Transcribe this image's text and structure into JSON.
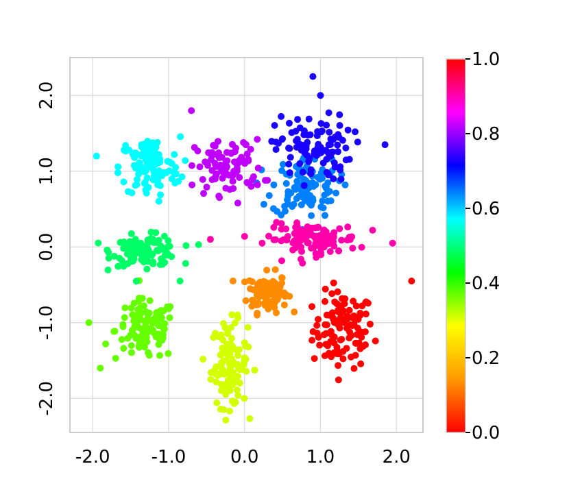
{
  "chart_data": {
    "type": "scatter",
    "title": "",
    "xlabel": "",
    "ylabel": "",
    "xlim": [
      -2.3,
      2.35
    ],
    "ylim": [
      -2.45,
      2.5
    ],
    "grid": true,
    "x_ticks": [
      -2.0,
      -1.0,
      0.0,
      1.0,
      2.0
    ],
    "x_tick_labels": [
      "-2.0",
      "-1.0",
      "0.0",
      "1.0",
      "2.0"
    ],
    "y_ticks": [
      -2.0,
      -1.0,
      0.0,
      1.0,
      2.0
    ],
    "y_tick_labels": [
      "-2.0",
      "-1.0",
      "0.0",
      "1.0",
      "2.0"
    ],
    "colorbar": {
      "range": [
        0.0,
        1.0
      ],
      "ticks": [
        0.0,
        0.2,
        0.4,
        0.6,
        0.8,
        1.0
      ],
      "tick_labels": [
        "0.0",
        "0.2",
        "0.4",
        "0.6",
        "0.8",
        "1.0"
      ],
      "colormap": "hsv",
      "stops": [
        "#ff0000",
        "#ff9900",
        "#ffff00",
        "#00ff00",
        "#00ffff",
        "#0000ff",
        "#ff00ff",
        "#ff0000"
      ]
    },
    "clusters": [
      {
        "center": [
          1.3,
          -1.1
        ],
        "spread": [
          0.2,
          0.25
        ],
        "n": 110,
        "value": 0.0,
        "color": "#ff0000"
      },
      {
        "center": [
          0.3,
          -0.6
        ],
        "spread": [
          0.13,
          0.13
        ],
        "n": 100,
        "value": 0.08,
        "color": "#ff8c00"
      },
      {
        "center": [
          -0.2,
          -1.55
        ],
        "spread": [
          0.12,
          0.28
        ],
        "n": 110,
        "value": 0.18,
        "color": "#d4ff00"
      },
      {
        "center": [
          -1.3,
          -1.1
        ],
        "spread": [
          0.2,
          0.2
        ],
        "n": 115,
        "value": 0.28,
        "color": "#66ff00"
      },
      {
        "center": [
          -1.3,
          -0.05
        ],
        "spread": [
          0.22,
          0.1
        ],
        "n": 110,
        "value": 0.38,
        "color": "#00ff66"
      },
      {
        "center": [
          -1.25,
          1.05
        ],
        "spread": [
          0.2,
          0.2
        ],
        "n": 110,
        "value": 0.5,
        "color": "#00ffff"
      },
      {
        "center": [
          0.8,
          0.8
        ],
        "spread": [
          0.22,
          0.2
        ],
        "n": 110,
        "value": 0.6,
        "color": "#0080ff"
      },
      {
        "center": [
          0.9,
          1.3
        ],
        "spread": [
          0.25,
          0.22
        ],
        "n": 100,
        "value": 0.68,
        "color": "#1a00ff"
      },
      {
        "center": [
          -0.2,
          1.05
        ],
        "spread": [
          0.22,
          0.18
        ],
        "n": 90,
        "value": 0.78,
        "color": "#c000ff"
      },
      {
        "center": [
          0.9,
          0.1
        ],
        "spread": [
          0.3,
          0.1
        ],
        "n": 110,
        "value": 0.88,
        "color": "#ff00aa"
      }
    ],
    "outliers": [
      {
        "x": 0.9,
        "y": 2.25,
        "color": "#1a00ff"
      },
      {
        "x": 1.0,
        "y": 2.0,
        "color": "#1a00ff"
      },
      {
        "x": 2.2,
        "y": -0.45,
        "color": "#ff0000"
      },
      {
        "x": -2.05,
        "y": -1.0,
        "color": "#66ff00"
      },
      {
        "x": -1.9,
        "y": -1.6,
        "color": "#66ff00"
      },
      {
        "x": -1.95,
        "y": 1.2,
        "color": "#00ffff"
      },
      {
        "x": -0.7,
        "y": 1.8,
        "color": "#c000ff"
      },
      {
        "x": 1.95,
        "y": 0.05,
        "color": "#ff00aa"
      },
      {
        "x": 1.85,
        "y": 1.35,
        "color": "#1a00ff"
      },
      {
        "x": -0.45,
        "y": 0.1,
        "color": "#ff00aa"
      },
      {
        "x": -0.85,
        "y": -0.45,
        "color": "#00ff66"
      }
    ]
  }
}
